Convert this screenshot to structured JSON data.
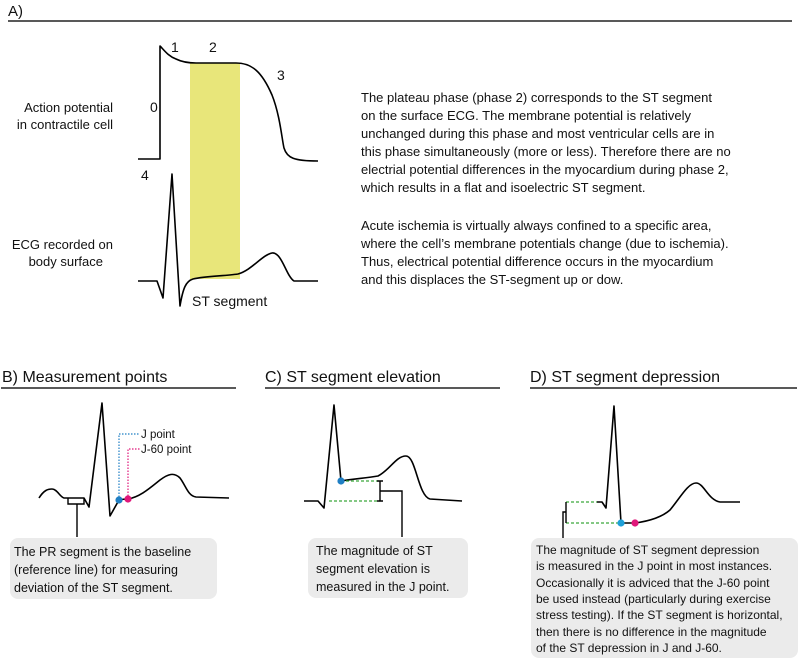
{
  "panel_a": {
    "label": "A)",
    "ap_label": [
      "Action potential",
      "in contractile cell"
    ],
    "ecg_label": [
      "ECG recorded on",
      "body surface"
    ],
    "phases": [
      "0",
      "1",
      "2",
      "3",
      "4"
    ],
    "st_label": "ST segment",
    "paragraph1": [
      "The plateau phase (phase 2) corresponds to the ST segment",
      "on the surface ECG.  The membrane potential is relatively",
      "unchanged during this phase and most ventricular cells are in",
      "this phase simultaneously (more or less). Therefore there are no",
      "electrial potential differences in the myocardium during phase 2,",
      "which results in a flat and isoelectric ST segment."
    ],
    "paragraph2": [
      "Acute ischemia is virtually always confined to a specific area,",
      "where the cell’s membrane potentials change (due to ischemia).",
      "Thus, electrical potential difference occurs in the myocardium",
      "and this displaces the ST-segment up or dow."
    ],
    "highlight_color": "#e8e67a"
  },
  "panel_b": {
    "title": "B) Measurement points",
    "j_point": "J point",
    "j60_point": "J-60 point",
    "j_color": "#1f7fc4",
    "j60_color": "#e0177a",
    "caption": [
      "The PR segment is the baseline",
      "(reference line) for measuring",
      "deviation of the ST segment."
    ]
  },
  "panel_c": {
    "title": "C) ST segment elevation",
    "caption": [
      "The magnitude of ST",
      "segment elevation is",
      "measured in the J point."
    ],
    "reference_color": "#3aa83a"
  },
  "panel_d": {
    "title": "D) ST segment depression",
    "caption": [
      "The magnitude of ST segment depression",
      "is measured in the J point in most instances.",
      "Occasionally it is adviced that the J-60 point",
      "be used instead (particularly during exercise",
      "stress testing). If the ST segment is horizontal,",
      "then there is no difference in the magnitude",
      "of the ST depression in J and J-60."
    ]
  }
}
